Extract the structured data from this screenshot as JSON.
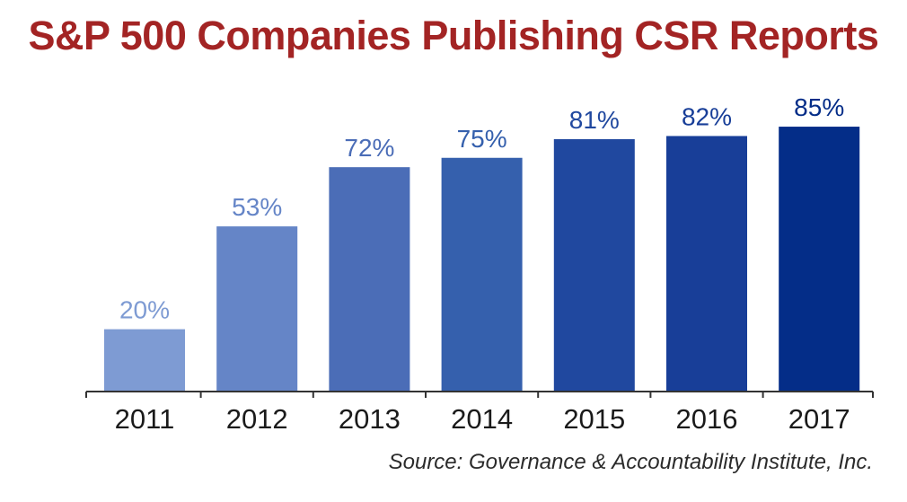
{
  "chart_data": {
    "type": "bar",
    "title": "S&P 500 Companies Publishing CSR Reports",
    "categories": [
      "2011",
      "2012",
      "2013",
      "2014",
      "2015",
      "2016",
      "2017"
    ],
    "values": [
      20,
      53,
      72,
      75,
      81,
      82,
      85
    ],
    "value_labels": [
      "20%",
      "53%",
      "72%",
      "75%",
      "81%",
      "82%",
      "85%"
    ],
    "xlabel": "",
    "ylabel": "",
    "ylim": [
      0,
      100
    ],
    "grid": false,
    "legend": "none",
    "bar_colors": [
      "#7e9bd3",
      "#6585c7",
      "#4b6db7",
      "#3560ad",
      "#20489f",
      "#183e98",
      "#042d88"
    ],
    "label_colors": [
      "#7e9bd3",
      "#6585c7",
      "#4b6db7",
      "#3560ad",
      "#20489f",
      "#183e98",
      "#042d88"
    ],
    "axis_color": "#333333",
    "tick_label_color": "#1a1a1a",
    "source": "Source: Governance & Accountability Institute, Inc."
  }
}
